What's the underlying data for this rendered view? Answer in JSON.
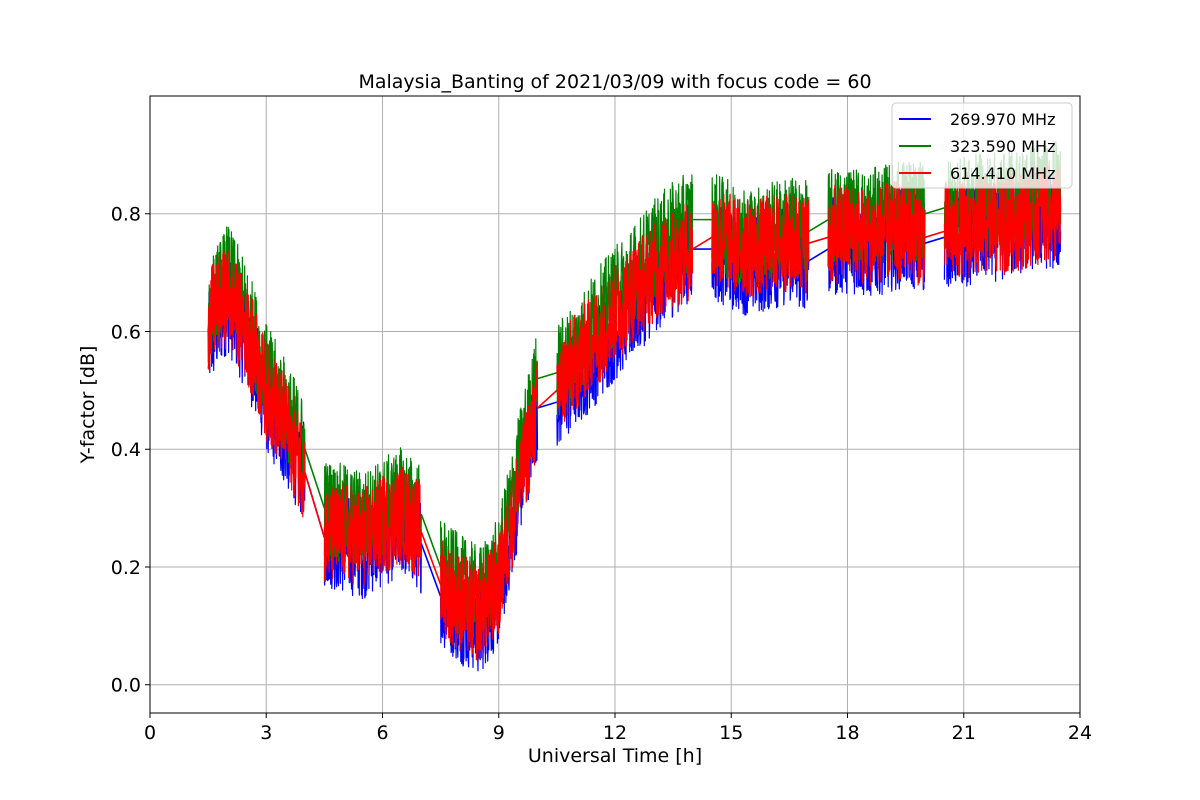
{
  "chart_data": {
    "type": "line",
    "title": "Malaysia_Banting of 2021/03/09 with focus code = 60",
    "xlabel": "Universal Time [h]",
    "ylabel": "Y-factor [dB]",
    "xlim": [
      0,
      24
    ],
    "ylim": [
      -0.048,
      1.0
    ],
    "xticks": [
      "0",
      "3",
      "6",
      "9",
      "12",
      "15",
      "18",
      "21",
      "24"
    ],
    "yticks": [
      "0.0",
      "0.2",
      "0.4",
      "0.6",
      "0.8"
    ],
    "grid": true,
    "legend_position": "top-right",
    "series": [
      {
        "name": "269.970 MHz",
        "color": "#0000ff",
        "segments": [
          {
            "x": [
              1.5,
              2.0,
              2.5,
              3.0,
              3.5,
              4.0
            ],
            "y": [
              0.58,
              0.65,
              0.58,
              0.48,
              0.42,
              0.36
            ]
          },
          {
            "x": [
              4.5,
              5.0,
              5.5,
              6.0,
              6.5,
              7.0
            ],
            "y": [
              0.25,
              0.24,
              0.23,
              0.25,
              0.27,
              0.24
            ]
          },
          {
            "x": [
              7.5,
              8.0,
              8.5,
              9.0,
              9.5,
              10.0
            ],
            "y": [
              0.15,
              0.12,
              0.1,
              0.15,
              0.32,
              0.47
            ]
          },
          {
            "x": [
              10.5,
              11.0,
              11.5,
              12.0,
              12.5,
              13.0,
              13.5,
              14.0
            ],
            "y": [
              0.48,
              0.52,
              0.56,
              0.6,
              0.64,
              0.68,
              0.71,
              0.74
            ]
          },
          {
            "x": [
              14.5,
              15.0,
              15.5,
              16.0,
              16.5,
              17.0
            ],
            "y": [
              0.74,
              0.72,
              0.71,
              0.72,
              0.73,
              0.72
            ]
          },
          {
            "x": [
              17.5,
              18.0,
              18.5,
              19.0,
              19.5,
              20.0
            ],
            "y": [
              0.74,
              0.75,
              0.74,
              0.75,
              0.76,
              0.75
            ]
          },
          {
            "x": [
              20.5,
              21.0,
              21.5,
              22.0,
              22.5,
              23.0,
              23.5
            ],
            "y": [
              0.76,
              0.76,
              0.77,
              0.77,
              0.78,
              0.79,
              0.79
            ]
          }
        ]
      },
      {
        "name": "323.590 MHz",
        "color": "#008000",
        "segments": [
          {
            "x": [
              1.5,
              2.0,
              2.5,
              3.0,
              3.5,
              4.0
            ],
            "y": [
              0.63,
              0.7,
              0.63,
              0.53,
              0.47,
              0.4
            ]
          },
          {
            "x": [
              4.5,
              5.0,
              5.5,
              6.0,
              6.5,
              7.0
            ],
            "y": [
              0.3,
              0.29,
              0.28,
              0.3,
              0.32,
              0.29
            ]
          },
          {
            "x": [
              7.5,
              8.0,
              8.5,
              9.0,
              9.5,
              10.0
            ],
            "y": [
              0.2,
              0.17,
              0.15,
              0.2,
              0.37,
              0.52
            ]
          },
          {
            "x": [
              10.5,
              11.0,
              11.5,
              12.0,
              12.5,
              13.0,
              13.5,
              14.0
            ],
            "y": [
              0.53,
              0.57,
              0.62,
              0.66,
              0.7,
              0.74,
              0.77,
              0.79
            ]
          },
          {
            "x": [
              14.5,
              15.0,
              15.5,
              16.0,
              16.5,
              17.0
            ],
            "y": [
              0.79,
              0.77,
              0.76,
              0.77,
              0.78,
              0.77
            ]
          },
          {
            "x": [
              17.5,
              18.0,
              18.5,
              19.0,
              19.5,
              20.0
            ],
            "y": [
              0.79,
              0.8,
              0.79,
              0.8,
              0.81,
              0.8
            ]
          },
          {
            "x": [
              20.5,
              21.0,
              21.5,
              22.0,
              22.5,
              23.0,
              23.5
            ],
            "y": [
              0.81,
              0.81,
              0.82,
              0.82,
              0.83,
              0.84,
              0.84
            ]
          }
        ]
      },
      {
        "name": "614.410 MHz",
        "color": "#ff0000",
        "segments": [
          {
            "x": [
              1.5,
              2.0,
              2.5,
              3.0,
              3.5,
              4.0
            ],
            "y": [
              0.62,
              0.66,
              0.6,
              0.5,
              0.44,
              0.36
            ]
          },
          {
            "x": [
              4.5,
              5.0,
              5.5,
              6.0,
              6.5,
              7.0
            ],
            "y": [
              0.25,
              0.26,
              0.25,
              0.27,
              0.29,
              0.26
            ]
          },
          {
            "x": [
              7.5,
              8.0,
              8.5,
              9.0,
              9.5,
              10.0
            ],
            "y": [
              0.17,
              0.14,
              0.12,
              0.17,
              0.33,
              0.47
            ]
          },
          {
            "x": [
              10.5,
              11.0,
              11.5,
              12.0,
              12.5,
              13.0,
              13.5,
              14.0
            ],
            "y": [
              0.5,
              0.55,
              0.59,
              0.63,
              0.67,
              0.7,
              0.72,
              0.74
            ]
          },
          {
            "x": [
              14.5,
              15.0,
              15.5,
              16.0,
              16.5,
              17.0
            ],
            "y": [
              0.76,
              0.75,
              0.74,
              0.75,
              0.75,
              0.75
            ]
          },
          {
            "x": [
              17.5,
              18.0,
              18.5,
              19.0,
              19.5,
              20.0
            ],
            "y": [
              0.76,
              0.77,
              0.76,
              0.77,
              0.77,
              0.76
            ]
          },
          {
            "x": [
              20.5,
              21.0,
              21.5,
              22.0,
              22.5,
              23.0,
              23.5
            ],
            "y": [
              0.77,
              0.77,
              0.78,
              0.78,
              0.79,
              0.8,
              0.8
            ]
          }
        ]
      }
    ]
  }
}
